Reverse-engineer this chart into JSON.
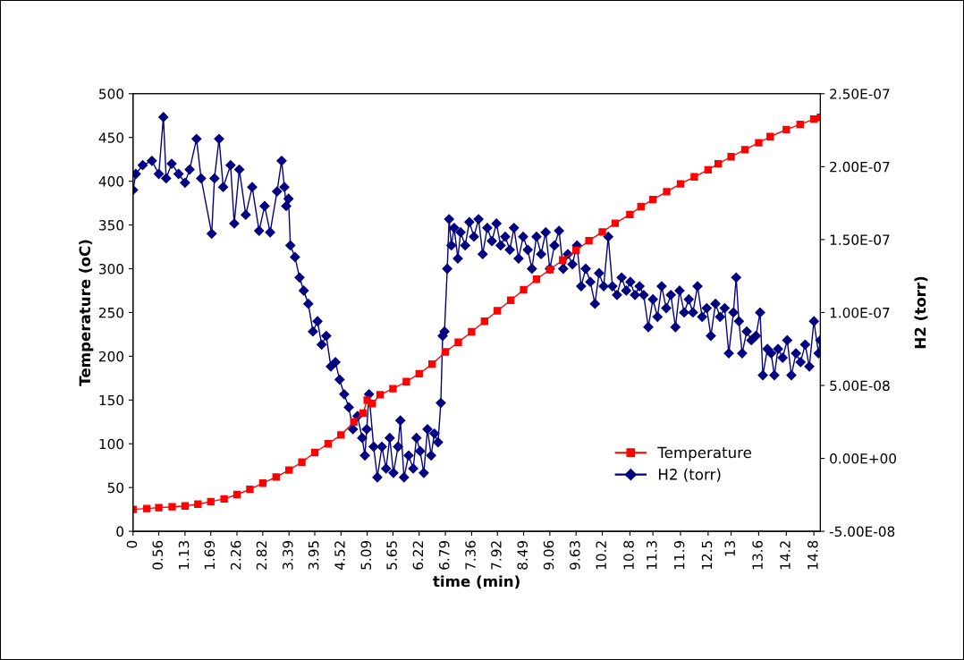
{
  "chart_data": {
    "type": "line",
    "xlabel": "time (min)",
    "ylabel": "Temperature (oC)",
    "y2label": "H2 (torr)",
    "xlim": [
      0,
      14.94
    ],
    "xticks": [
      0,
      0.56,
      1.13,
      1.69,
      2.26,
      2.82,
      3.39,
      3.95,
      4.52,
      5.09,
      5.65,
      6.22,
      6.79,
      7.36,
      7.92,
      8.49,
      9.06,
      9.63,
      10.2,
      10.8,
      11.3,
      11.9,
      12.5,
      13,
      13.6,
      14.2,
      14.8
    ],
    "ylim": [
      0,
      500
    ],
    "yticks": [
      0,
      50,
      100,
      150,
      200,
      250,
      300,
      350,
      400,
      450,
      500
    ],
    "y2lim": [
      -5e-08,
      2.5e-07
    ],
    "y2ticks": [
      {
        "value": -5e-08,
        "label": "-5.00E-08"
      },
      {
        "value": 0,
        "label": "0.00E+00"
      },
      {
        "value": 5e-08,
        "label": "5.00E-08"
      },
      {
        "value": 1e-07,
        "label": "1.00E-07"
      },
      {
        "value": 1.5e-07,
        "label": "1.50E-07"
      },
      {
        "value": 2e-07,
        "label": "2.00E-07"
      },
      {
        "value": 2.5e-07,
        "label": "2.50E-07"
      }
    ],
    "grid": false,
    "legend": "lower right",
    "line_style": "solid",
    "series": [
      {
        "name": "Temperature",
        "color": "#ff0000",
        "marker": "square",
        "x": [
          0,
          0.3,
          0.56,
          0.85,
          1.13,
          1.41,
          1.69,
          1.98,
          2.26,
          2.54,
          2.82,
          3.11,
          3.39,
          3.67,
          3.95,
          4.24,
          4.52,
          4.8,
          5.0,
          5.09,
          5.2,
          5.37,
          5.65,
          5.94,
          6.22,
          6.5,
          6.79,
          7.07,
          7.36,
          7.64,
          7.92,
          8.21,
          8.49,
          8.77,
          9.06,
          9.34,
          9.63,
          9.91,
          10.2,
          10.48,
          10.8,
          11.04,
          11.3,
          11.6,
          11.9,
          12.2,
          12.5,
          12.72,
          13,
          13.3,
          13.6,
          13.85,
          14.2,
          14.5,
          14.8,
          14.94
        ],
        "values": [
          25,
          26,
          27,
          28,
          29,
          31,
          34,
          37,
          42,
          48,
          55,
          62,
          70,
          79,
          90,
          100,
          110,
          125,
          135,
          150,
          146,
          156,
          163,
          171,
          180,
          191,
          205,
          216,
          228,
          240,
          252,
          264,
          276,
          288,
          299,
          310,
          321,
          332,
          342,
          352,
          362,
          371,
          379,
          388,
          397,
          405,
          413,
          420,
          428,
          436,
          444,
          451,
          459,
          465,
          471,
          473
        ]
      },
      {
        "name": "H2 (torr)",
        "color": "#000080",
        "marker": "diamond",
        "axis": "y2",
        "x": [
          0,
          0.06,
          0.21,
          0.41,
          0.56,
          0.66,
          0.72,
          0.84,
          0.99,
          1.13,
          1.23,
          1.38,
          1.48,
          1.71,
          1.77,
          1.87,
          1.96,
          2.12,
          2.2,
          2.31,
          2.45,
          2.59,
          2.74,
          2.86,
          2.98,
          3.13,
          3.23,
          3.29,
          3.33,
          3.38,
          3.42,
          3.52,
          3.62,
          3.71,
          3.81,
          3.91,
          4.01,
          4.1,
          4.2,
          4.3,
          4.4,
          4.49,
          4.59,
          4.69,
          4.78,
          4.88,
          4.98,
          5.04,
          5.08,
          5.13,
          5.23,
          5.31,
          5.41,
          5.5,
          5.58,
          5.66,
          5.76,
          5.81,
          5.89,
          5.99,
          6.09,
          6.16,
          6.24,
          6.32,
          6.4,
          6.48,
          6.55,
          6.63,
          6.69,
          6.73,
          6.77,
          6.83,
          6.87,
          6.92,
          6.98,
          7.06,
          7.12,
          7.22,
          7.31,
          7.41,
          7.51,
          7.6,
          7.7,
          7.8,
          7.9,
          7.99,
          8.09,
          8.19,
          8.28,
          8.38,
          8.48,
          8.58,
          8.67,
          8.77,
          8.87,
          8.97,
          9.06,
          9.16,
          9.26,
          9.35,
          9.45,
          9.55,
          9.65,
          9.74,
          9.84,
          9.94,
          10.04,
          10.13,
          10.23,
          10.33,
          10.42,
          10.52,
          10.62,
          10.72,
          10.81,
          10.91,
          11.01,
          11.1,
          11.2,
          11.3,
          11.4,
          11.49,
          11.59,
          11.69,
          11.79,
          11.88,
          11.98,
          12.08,
          12.17,
          12.27,
          12.37,
          12.47,
          12.56,
          12.66,
          12.76,
          12.86,
          12.95,
          13.05,
          13.11,
          13.17,
          13.24,
          13.34,
          13.44,
          13.54,
          13.63,
          13.69,
          13.79,
          13.87,
          13.94,
          14.02,
          14.12,
          14.22,
          14.31,
          14.41,
          14.51,
          14.61,
          14.7,
          14.8,
          14.9,
          14.94
        ],
        "values": [
          1.84e-07,
          1.95e-07,
          2.01e-07,
          2.04e-07,
          1.95e-07,
          2.34e-07,
          1.92e-07,
          2.02e-07,
          1.95e-07,
          1.89e-07,
          1.98e-07,
          2.19e-07,
          1.92e-07,
          1.54e-07,
          1.92e-07,
          2.19e-07,
          1.86e-07,
          2.01e-07,
          1.61e-07,
          1.98e-07,
          1.67e-07,
          1.86e-07,
          1.56e-07,
          1.73e-07,
          1.55e-07,
          1.83e-07,
          2.04e-07,
          1.86e-07,
          1.73e-07,
          1.78e-07,
          1.46e-07,
          1.38e-07,
          1.24e-07,
          1.15e-07,
          1.06e-07,
          8.7e-08,
          9.4e-08,
          7.8e-08,
          8.4e-08,
          6.3e-08,
          6.6e-08,
          5.4e-08,
          4.4e-08,
          3.5e-08,
          2e-08,
          2.9e-08,
          1.4e-08,
          2e-09,
          2e-08,
          4.4e-08,
          8e-09,
          -1.3e-08,
          8e-09,
          -7e-09,
          1.4e-08,
          -1e-08,
          8e-09,
          2.6e-08,
          -1.3e-08,
          2e-09,
          -7e-09,
          1.4e-08,
          5e-09,
          -1e-08,
          2e-08,
          2e-09,
          1.7e-08,
          1.1e-08,
          3.8e-08,
          8.4e-08,
          8.7e-08,
          1.3e-07,
          1.64e-07,
          1.46e-07,
          1.58e-07,
          1.37e-07,
          1.55e-07,
          1.46e-07,
          1.62e-07,
          1.52e-07,
          1.64e-07,
          1.4e-07,
          1.58e-07,
          1.49e-07,
          1.61e-07,
          1.46e-07,
          1.52e-07,
          1.43e-07,
          1.58e-07,
          1.37e-07,
          1.52e-07,
          1.43e-07,
          1.3e-07,
          1.52e-07,
          1.4e-07,
          1.55e-07,
          1.3e-07,
          1.46e-07,
          1.56e-07,
          1.3e-07,
          1.4e-07,
          1.33e-07,
          1.46e-07,
          1.18e-07,
          1.3e-07,
          1.21e-07,
          1.06e-07,
          1.27e-07,
          1.18e-07,
          1.52e-07,
          1.18e-07,
          1.12e-07,
          1.24e-07,
          1.15e-07,
          1.21e-07,
          1.12e-07,
          1.18e-07,
          1.12e-07,
          9e-08,
          1.09e-07,
          9.7e-08,
          1.18e-07,
          1.03e-07,
          1.12e-07,
          9e-08,
          1.15e-07,
          1e-07,
          1.09e-07,
          1e-07,
          1.18e-07,
          9.7e-08,
          1.03e-07,
          8.4e-08,
          1.06e-07,
          9.7e-08,
          1.03e-07,
          7.2e-08,
          1e-07,
          1.24e-07,
          9.4e-08,
          7.2e-08,
          8.7e-08,
          8.1e-08,
          8.4e-08,
          1e-07,
          5.7e-08,
          7.5e-08,
          7.2e-08,
          5.7e-08,
          7.5e-08,
          6.9e-08,
          8.1e-08,
          5.7e-08,
          7.2e-08,
          6.6e-08,
          7.8e-08,
          6.3e-08,
          9.4e-08,
          7.2e-08,
          8.1e-08
        ]
      }
    ]
  }
}
